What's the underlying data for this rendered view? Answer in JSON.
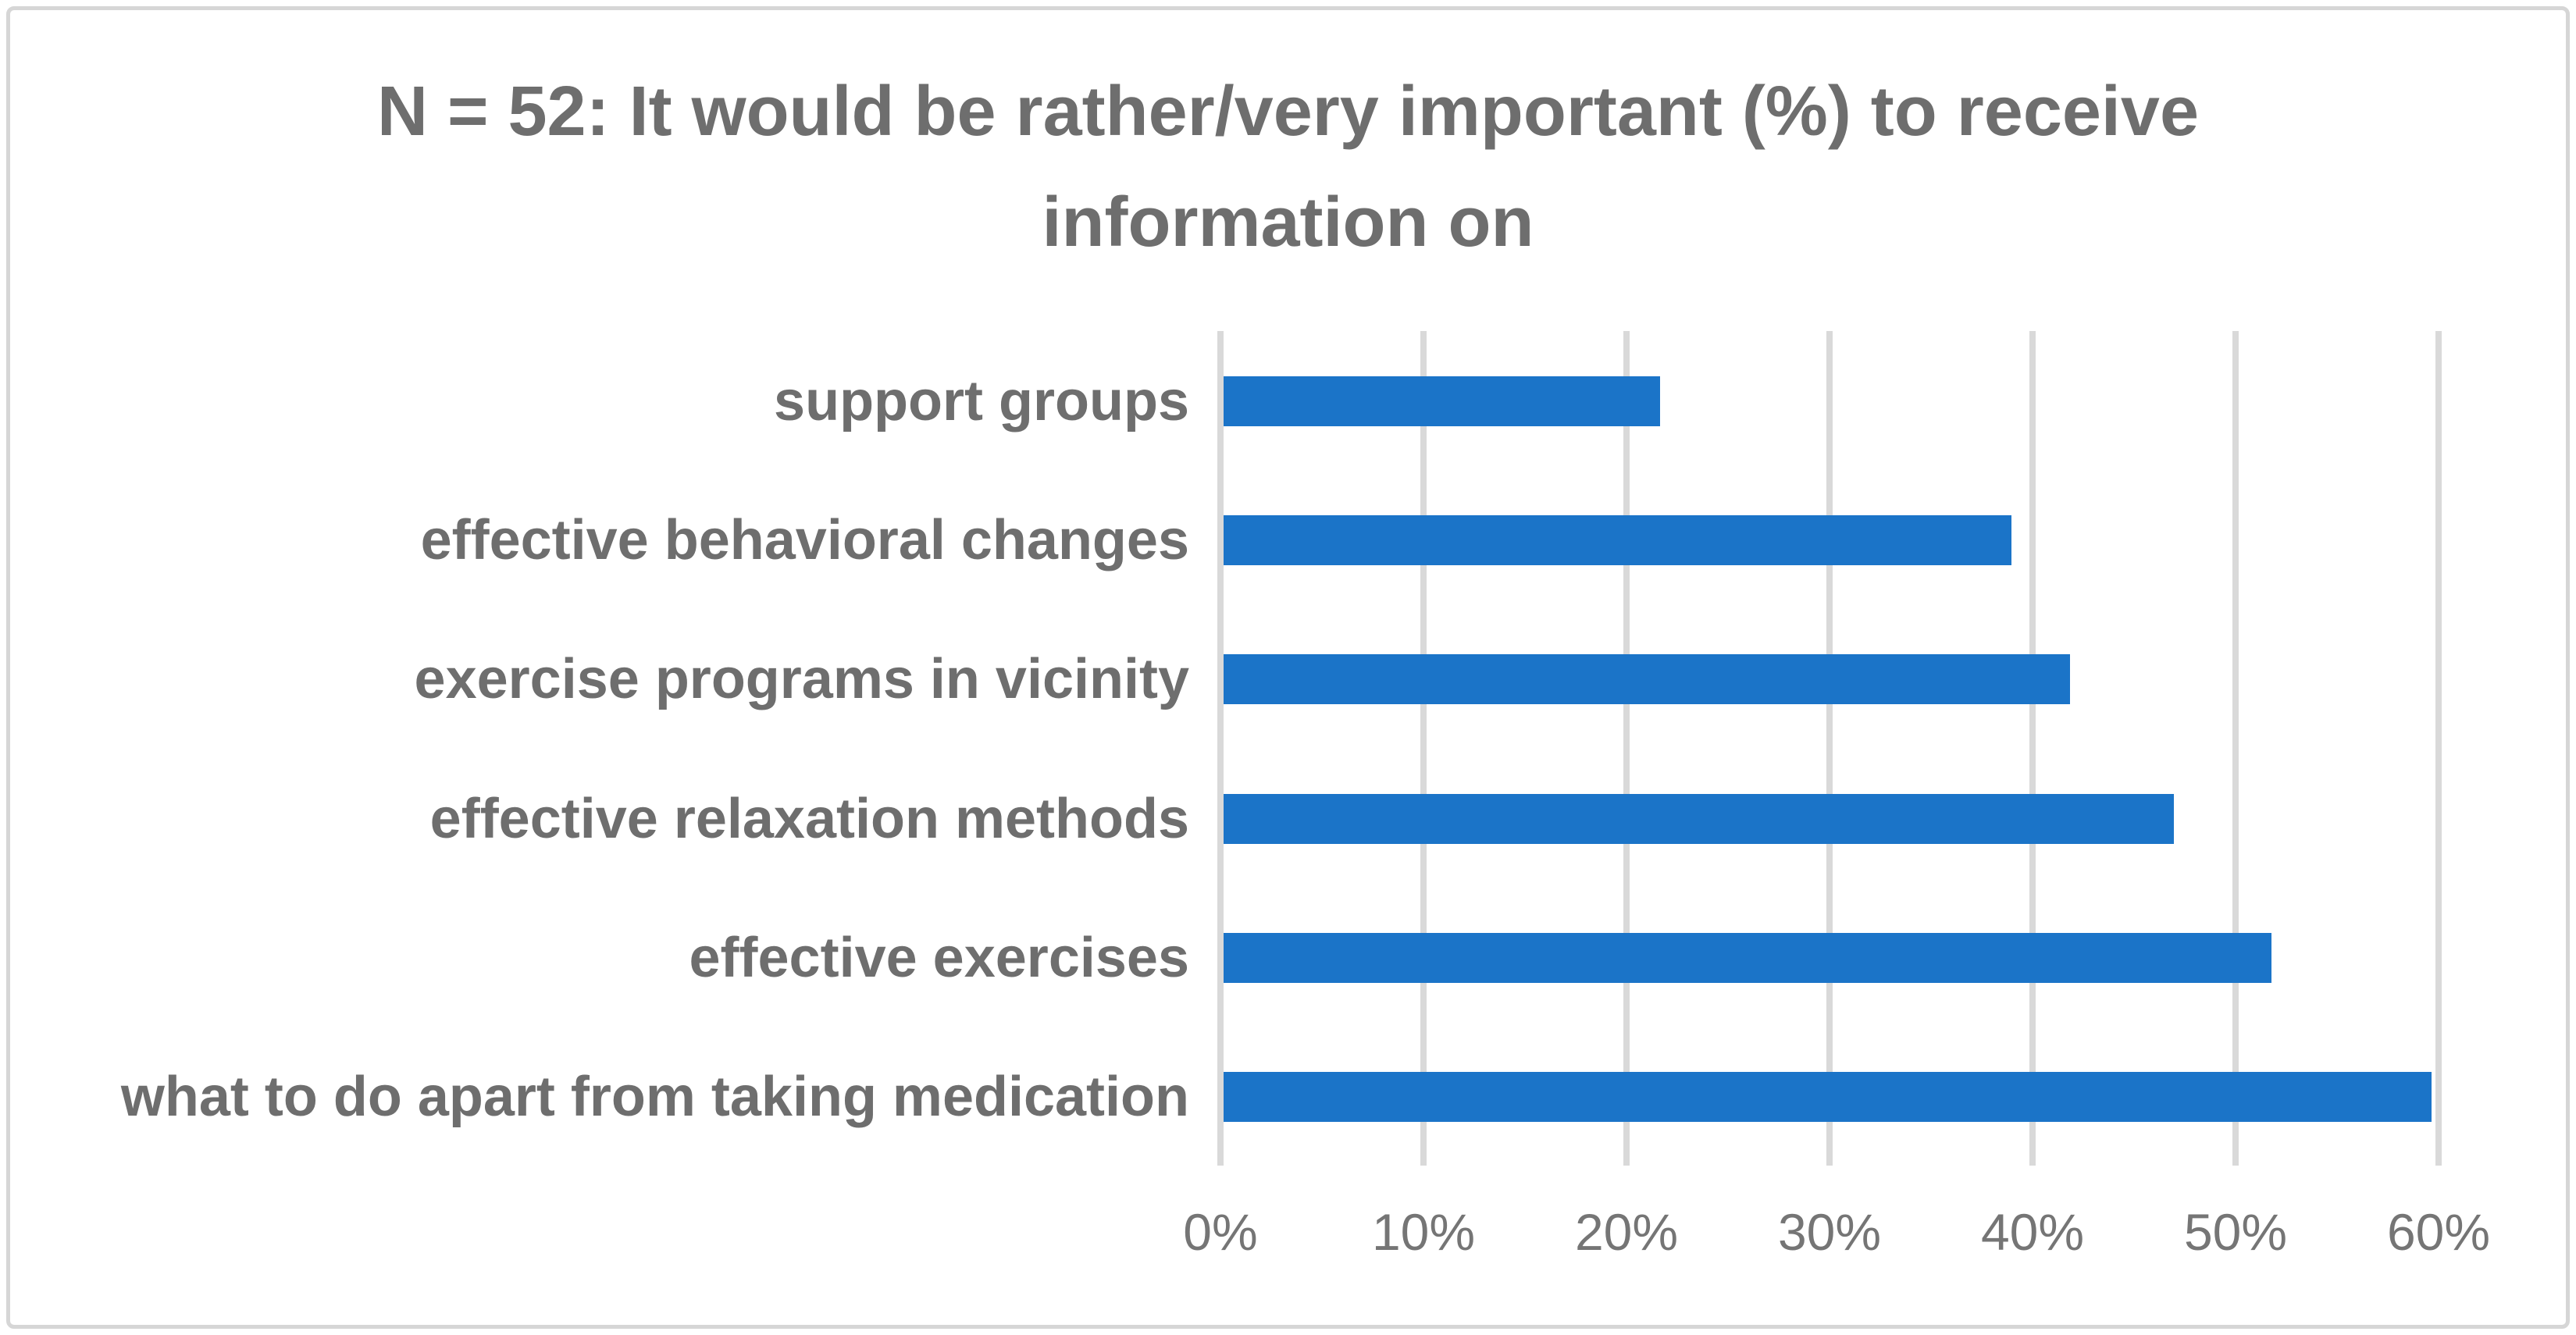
{
  "chart_data": {
    "type": "bar",
    "orientation": "horizontal",
    "title": "N = 52: It would be rather/very important (%) to receive information on",
    "title_lines": [
      "N = 52: It would be rather/very important (%) to receive",
      "information on"
    ],
    "categories": [
      "support groups",
      "effective behavioral changes",
      "exercise programs in vicinity",
      "effective relaxation methods",
      "effective exercises",
      "what to do apart from taking medication"
    ],
    "values": [
      21.5,
      38.8,
      41.7,
      46.8,
      51.6,
      59.5
    ],
    "x_axis": {
      "min": 0,
      "max": 60,
      "tick_step": 10,
      "tick_labels": [
        "0%",
        "10%",
        "20%",
        "30%",
        "40%",
        "50%",
        "60%"
      ]
    },
    "ylabel": "",
    "xlabel": "",
    "grid": true,
    "legend": false,
    "colors": {
      "bar": "#1b74c8",
      "gridline": "#d9d9d9",
      "title_text": "#6e6e6e",
      "category_text": "#6e6e6e",
      "tick_text": "#757575",
      "frame_border": "#d6d6d6",
      "background": "#ffffff"
    }
  }
}
